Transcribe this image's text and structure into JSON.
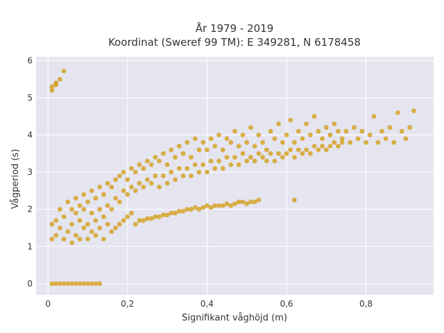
{
  "chart_data": {
    "type": "scatter",
    "title": [
      "År 1979 - 2019",
      "Koordinat (Sweref 99 TM): E 349281, N 6178458"
    ],
    "xlabel": "Signifikant våghöjd (m)",
    "ylabel": "Vågperiod (s)",
    "xlim": [
      -0.03,
      0.97
    ],
    "ylim": [
      -0.3,
      6.1
    ],
    "x_ticks": [
      0,
      0.2,
      0.4,
      0.6,
      0.8
    ],
    "x_tick_labels": [
      "0",
      "0,2",
      "0,4",
      "0,6",
      "0,8"
    ],
    "y_ticks": [
      0,
      1,
      2,
      3,
      4,
      5,
      6
    ],
    "y_tick_labels": [
      "0",
      "1",
      "2",
      "3",
      "4",
      "5",
      "6"
    ],
    "grid": true,
    "legend": "none",
    "colors": {
      "marker": "#d4a020",
      "plot_bg": "#e5e5f0",
      "grid": "#ffffff"
    },
    "series": [
      {
        "name": "",
        "points": [
          [
            0.01,
            0.0
          ],
          [
            0.02,
            0.0
          ],
          [
            0.03,
            0.0
          ],
          [
            0.04,
            0.0
          ],
          [
            0.05,
            0.0
          ],
          [
            0.06,
            0.0
          ],
          [
            0.07,
            0.0
          ],
          [
            0.08,
            0.0
          ],
          [
            0.09,
            0.0
          ],
          [
            0.1,
            0.0
          ],
          [
            0.11,
            0.0
          ],
          [
            0.12,
            0.0
          ],
          [
            0.13,
            0.0
          ],
          [
            0.01,
            5.2
          ],
          [
            0.01,
            5.3
          ],
          [
            0.02,
            5.35
          ],
          [
            0.02,
            5.4
          ],
          [
            0.03,
            5.5
          ],
          [
            0.04,
            5.72
          ],
          [
            0.01,
            1.2
          ],
          [
            0.01,
            1.6
          ],
          [
            0.02,
            1.3
          ],
          [
            0.02,
            1.7
          ],
          [
            0.03,
            1.5
          ],
          [
            0.03,
            2.0
          ],
          [
            0.04,
            1.2
          ],
          [
            0.04,
            1.8
          ],
          [
            0.05,
            1.4
          ],
          [
            0.05,
            2.2
          ],
          [
            0.06,
            1.1
          ],
          [
            0.06,
            1.6
          ],
          [
            0.06,
            2.0
          ],
          [
            0.07,
            1.3
          ],
          [
            0.07,
            1.9
          ],
          [
            0.07,
            2.3
          ],
          [
            0.08,
            1.2
          ],
          [
            0.08,
            1.7
          ],
          [
            0.08,
            2.1
          ],
          [
            0.09,
            1.5
          ],
          [
            0.09,
            2.0
          ],
          [
            0.09,
            2.4
          ],
          [
            0.1,
            1.2
          ],
          [
            0.1,
            1.6
          ],
          [
            0.1,
            2.2
          ],
          [
            0.11,
            1.4
          ],
          [
            0.11,
            1.9
          ],
          [
            0.11,
            2.5
          ],
          [
            0.12,
            1.3
          ],
          [
            0.12,
            1.7
          ],
          [
            0.12,
            2.3
          ],
          [
            0.13,
            1.5
          ],
          [
            0.13,
            2.0
          ],
          [
            0.13,
            2.6
          ],
          [
            0.14,
            1.2
          ],
          [
            0.14,
            1.8
          ],
          [
            0.14,
            2.4
          ],
          [
            0.15,
            1.6
          ],
          [
            0.15,
            2.1
          ],
          [
            0.15,
            2.7
          ],
          [
            0.16,
            1.4
          ],
          [
            0.16,
            2.0
          ],
          [
            0.16,
            2.6
          ],
          [
            0.17,
            1.5
          ],
          [
            0.17,
            2.3
          ],
          [
            0.17,
            2.8
          ],
          [
            0.18,
            1.6
          ],
          [
            0.18,
            2.2
          ],
          [
            0.18,
            2.9
          ],
          [
            0.19,
            1.7
          ],
          [
            0.19,
            2.5
          ],
          [
            0.19,
            3.0
          ],
          [
            0.2,
            1.8
          ],
          [
            0.2,
            2.4
          ],
          [
            0.2,
            2.8
          ],
          [
            0.21,
            1.9
          ],
          [
            0.21,
            2.6
          ],
          [
            0.21,
            3.1
          ],
          [
            0.22,
            1.6
          ],
          [
            0.22,
            2.5
          ],
          [
            0.22,
            3.0
          ],
          [
            0.23,
            1.7
          ],
          [
            0.23,
            2.7
          ],
          [
            0.23,
            3.2
          ],
          [
            0.24,
            1.7
          ],
          [
            0.24,
            2.6
          ],
          [
            0.24,
            3.1
          ],
          [
            0.25,
            1.75
          ],
          [
            0.25,
            2.8
          ],
          [
            0.25,
            3.3
          ],
          [
            0.26,
            1.75
          ],
          [
            0.26,
            2.7
          ],
          [
            0.26,
            3.2
          ],
          [
            0.27,
            1.8
          ],
          [
            0.27,
            2.9
          ],
          [
            0.27,
            3.4
          ],
          [
            0.28,
            1.8
          ],
          [
            0.28,
            2.6
          ],
          [
            0.28,
            3.3
          ],
          [
            0.29,
            1.85
          ],
          [
            0.29,
            2.9
          ],
          [
            0.29,
            3.5
          ],
          [
            0.3,
            1.85
          ],
          [
            0.3,
            2.7
          ],
          [
            0.3,
            3.2
          ],
          [
            0.31,
            1.9
          ],
          [
            0.31,
            3.0
          ],
          [
            0.31,
            3.6
          ],
          [
            0.32,
            1.9
          ],
          [
            0.32,
            2.8
          ],
          [
            0.32,
            3.4
          ],
          [
            0.33,
            1.95
          ],
          [
            0.33,
            3.1
          ],
          [
            0.33,
            3.7
          ],
          [
            0.34,
            1.95
          ],
          [
            0.34,
            2.9
          ],
          [
            0.34,
            3.5
          ],
          [
            0.35,
            2.0
          ],
          [
            0.35,
            3.1
          ],
          [
            0.35,
            3.8
          ],
          [
            0.36,
            2.0
          ],
          [
            0.36,
            2.9
          ],
          [
            0.36,
            3.4
          ],
          [
            0.37,
            2.05
          ],
          [
            0.37,
            3.2
          ],
          [
            0.37,
            3.9
          ],
          [
            0.38,
            2.0
          ],
          [
            0.38,
            3.0
          ],
          [
            0.38,
            3.6
          ],
          [
            0.39,
            2.05
          ],
          [
            0.39,
            3.2
          ],
          [
            0.39,
            3.8
          ],
          [
            0.4,
            2.1
          ],
          [
            0.4,
            3.0
          ],
          [
            0.4,
            3.6
          ],
          [
            0.41,
            2.05
          ],
          [
            0.41,
            3.3
          ],
          [
            0.41,
            3.9
          ],
          [
            0.42,
            2.1
          ],
          [
            0.42,
            3.1
          ],
          [
            0.42,
            3.7
          ],
          [
            0.43,
            2.1
          ],
          [
            0.43,
            3.3
          ],
          [
            0.43,
            4.0
          ],
          [
            0.44,
            2.1
          ],
          [
            0.44,
            3.1
          ],
          [
            0.44,
            3.6
          ],
          [
            0.45,
            2.15
          ],
          [
            0.45,
            3.4
          ],
          [
            0.45,
            3.9
          ],
          [
            0.46,
            2.1
          ],
          [
            0.46,
            3.2
          ],
          [
            0.46,
            3.8
          ],
          [
            0.47,
            2.15
          ],
          [
            0.47,
            3.4
          ],
          [
            0.47,
            4.1
          ],
          [
            0.48,
            2.2
          ],
          [
            0.48,
            3.2
          ],
          [
            0.48,
            3.7
          ],
          [
            0.49,
            2.2
          ],
          [
            0.49,
            3.5
          ],
          [
            0.49,
            4.0
          ],
          [
            0.5,
            2.15
          ],
          [
            0.5,
            3.3
          ],
          [
            0.5,
            3.8
          ],
          [
            0.51,
            2.2
          ],
          [
            0.51,
            3.4
          ],
          [
            0.51,
            4.2
          ],
          [
            0.52,
            2.2
          ],
          [
            0.52,
            3.3
          ],
          [
            0.52,
            3.7
          ],
          [
            0.53,
            2.25
          ],
          [
            0.53,
            3.5
          ],
          [
            0.53,
            4.0
          ],
          [
            0.54,
            3.4
          ],
          [
            0.54,
            3.8
          ],
          [
            0.55,
            3.3
          ],
          [
            0.55,
            3.6
          ],
          [
            0.56,
            3.5
          ],
          [
            0.56,
            4.1
          ],
          [
            0.57,
            3.3
          ],
          [
            0.57,
            3.9
          ],
          [
            0.58,
            3.5
          ],
          [
            0.58,
            4.3
          ],
          [
            0.59,
            3.4
          ],
          [
            0.59,
            3.8
          ],
          [
            0.6,
            3.5
          ],
          [
            0.6,
            4.0
          ],
          [
            0.61,
            3.6
          ],
          [
            0.61,
            4.4
          ],
          [
            0.62,
            2.25
          ],
          [
            0.62,
            3.4
          ],
          [
            0.62,
            3.8
          ],
          [
            0.63,
            3.6
          ],
          [
            0.63,
            4.1
          ],
          [
            0.64,
            3.5
          ],
          [
            0.64,
            3.9
          ],
          [
            0.65,
            3.6
          ],
          [
            0.65,
            4.3
          ],
          [
            0.66,
            3.5
          ],
          [
            0.66,
            4.0
          ],
          [
            0.67,
            3.7
          ],
          [
            0.67,
            4.5
          ],
          [
            0.68,
            3.6
          ],
          [
            0.68,
            4.1
          ],
          [
            0.69,
            3.7
          ],
          [
            0.69,
            3.9
          ],
          [
            0.7,
            3.6
          ],
          [
            0.7,
            4.2
          ],
          [
            0.71,
            3.7
          ],
          [
            0.71,
            4.0
          ],
          [
            0.72,
            3.8
          ],
          [
            0.72,
            4.3
          ],
          [
            0.73,
            3.7
          ],
          [
            0.73,
            4.1
          ],
          [
            0.74,
            3.8
          ],
          [
            0.74,
            3.9
          ],
          [
            0.75,
            4.1
          ],
          [
            0.76,
            3.8
          ],
          [
            0.77,
            4.2
          ],
          [
            0.78,
            3.9
          ],
          [
            0.79,
            4.1
          ],
          [
            0.8,
            3.8
          ],
          [
            0.81,
            4.0
          ],
          [
            0.82,
            4.5
          ],
          [
            0.83,
            3.8
          ],
          [
            0.84,
            4.1
          ],
          [
            0.85,
            3.9
          ],
          [
            0.86,
            4.2
          ],
          [
            0.87,
            3.8
          ],
          [
            0.88,
            4.6
          ],
          [
            0.89,
            4.1
          ],
          [
            0.9,
            3.9
          ],
          [
            0.91,
            4.2
          ],
          [
            0.92,
            4.65
          ]
        ]
      }
    ]
  }
}
